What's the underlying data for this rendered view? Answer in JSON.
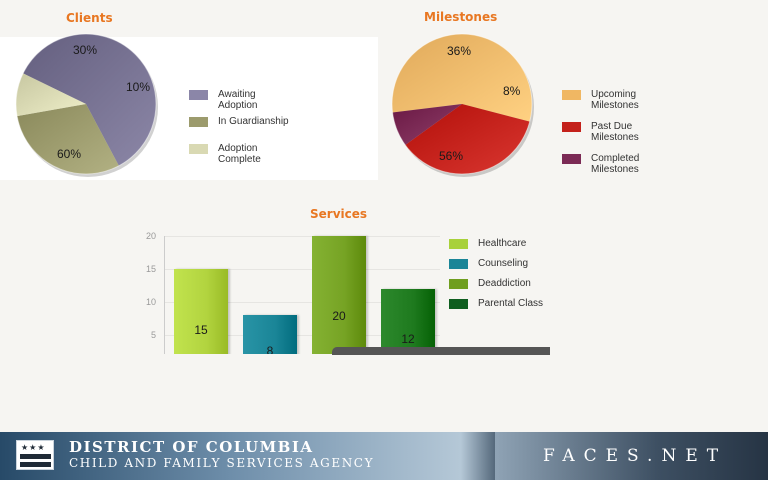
{
  "clients": {
    "title": "Clients",
    "chart_data": {
      "type": "pie",
      "title": "Clients",
      "slices": [
        {
          "label": "Awaiting Adoption",
          "value": 60,
          "display": "60%",
          "color": "#767191"
        },
        {
          "label": "In Guardianship",
          "value": 30,
          "display": "30%",
          "color": "#9c9b6d"
        },
        {
          "label": "Adoption Complete",
          "value": 10,
          "display": "10%",
          "color": "#d9d9b3"
        }
      ]
    },
    "legend": [
      {
        "line1": "Awaiting",
        "line2": "Adoption",
        "color": "#8b86a8"
      },
      {
        "line1": "In Guardianship",
        "line2": "",
        "color": "#9c9b6d"
      },
      {
        "line1": "Adoption",
        "line2": "Complete",
        "color": "#d9d9b3"
      }
    ]
  },
  "milestones": {
    "title": "Milestones",
    "chart_data": {
      "type": "pie",
      "title": "Milestones",
      "slices": [
        {
          "label": "Upcoming Milestones",
          "value": 56,
          "display": "56%",
          "color": "#f2bb6c"
        },
        {
          "label": "Past Due Milestones",
          "value": 36,
          "display": "36%",
          "color": "#c4211b"
        },
        {
          "label": "Completed Milestones",
          "value": 8,
          "display": "8%",
          "color": "#7b2a55"
        }
      ]
    },
    "legend": [
      {
        "line1": "Upcoming",
        "line2": "Milestones",
        "color": "#f0b763"
      },
      {
        "line1": "Past Due",
        "line2": "Milestones",
        "color": "#c4211b"
      },
      {
        "line1": "Completed",
        "line2": "Milestones",
        "color": "#7b2a55"
      }
    ]
  },
  "services": {
    "title": "Services",
    "chart_data": {
      "type": "bar",
      "title": "Services",
      "categories": [
        "Healthcare",
        "Counseling",
        "Deaddiction",
        "Parental Class"
      ],
      "values": [
        15,
        8,
        20,
        12
      ],
      "colors": [
        "#b2d43f",
        "#1a8597",
        "#76a324",
        "#1e7a1e"
      ],
      "ylim": [
        0,
        20
      ],
      "yticks": [
        "20",
        "15",
        "10",
        "5"
      ]
    },
    "legend": [
      {
        "label": "Healthcare",
        "color": "#a8d13a"
      },
      {
        "label": "Counseling",
        "color": "#1a8597"
      },
      {
        "label": "Deaddiction",
        "color": "#6f9e1f"
      },
      {
        "label": "Parental Class",
        "color": "#0f5e1f"
      }
    ]
  },
  "footer": {
    "agency_line1": "DISTRICT OF COLUMBIA",
    "agency_line2": "CHILD AND FAMILY SERVICES AGENCY",
    "flag_stars": "★★★",
    "brand": "FACES.NET"
  }
}
